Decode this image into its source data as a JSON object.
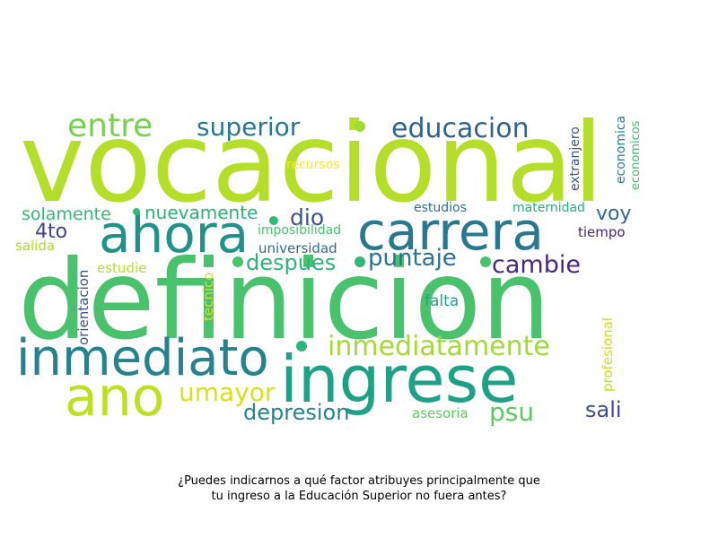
{
  "caption": {
    "line1": "¿Puedes indicarnos a qué factor atribuyes principalmente que",
    "line2": "tu ingreso a la Educación Superior no fuera antes?"
  },
  "words": [
    {
      "text": "vocacional",
      "color": "#b5de2b"
    },
    {
      "text": "definicion",
      "color": "#4ac16d"
    },
    {
      "text": "ingrese",
      "color": "#1fa187"
    },
    {
      "text": "ahora",
      "color": "#21918c"
    },
    {
      "text": "carrera",
      "color": "#2a788e"
    },
    {
      "text": "inmediato",
      "color": "#26828e"
    },
    {
      "text": "ano",
      "color": "#bddf26"
    },
    {
      "text": "entre",
      "color": "#7ad151"
    },
    {
      "text": "superior",
      "color": "#2a788e"
    },
    {
      "text": "educacion",
      "color": "#33638d"
    },
    {
      "text": "inmediatamente",
      "color": "#a2da37"
    },
    {
      "text": "umayor",
      "color": "#d8e219"
    },
    {
      "text": "cambie",
      "color": "#482878"
    },
    {
      "text": "puntaje",
      "color": "#2c728e"
    },
    {
      "text": "despues",
      "color": "#2fb47c"
    },
    {
      "text": "depresion",
      "color": "#25848e"
    },
    {
      "text": "psu",
      "color": "#5ec962"
    },
    {
      "text": "sali",
      "color": "#3e4a89"
    },
    {
      "text": "dio",
      "color": "#3b528b"
    },
    {
      "text": "voy",
      "color": "#31688e"
    },
    {
      "text": "4to",
      "color": "#414487"
    },
    {
      "text": "solamente",
      "color": "#35b779"
    },
    {
      "text": "nuevamente",
      "color": "#2db27d"
    },
    {
      "text": "universidad",
      "color": "#2e6f8e"
    },
    {
      "text": "imposibilidad",
      "color": "#48c16e"
    },
    {
      "text": "falta",
      "color": "#20a386"
    },
    {
      "text": "estudie",
      "color": "#b8de29"
    },
    {
      "text": "salida",
      "color": "#addc30"
    },
    {
      "text": "tiempo",
      "color": "#481f70"
    },
    {
      "text": "estudios",
      "color": "#2d708e"
    },
    {
      "text": "maternidad",
      "color": "#27ad81"
    },
    {
      "text": "asesoria",
      "color": "#5ec962"
    },
    {
      "text": "recursos",
      "color": "#fde725"
    },
    {
      "text": "orientacion",
      "color": "#3b528b"
    },
    {
      "text": "tecnico",
      "color": "#d2e21b"
    },
    {
      "text": "profesional",
      "color": "#c8e020"
    },
    {
      "text": "extranjero",
      "color": "#3b528b"
    },
    {
      "text": "economica",
      "color": "#277f8e"
    },
    {
      "text": "economicos",
      "color": "#3fbc73"
    }
  ]
}
